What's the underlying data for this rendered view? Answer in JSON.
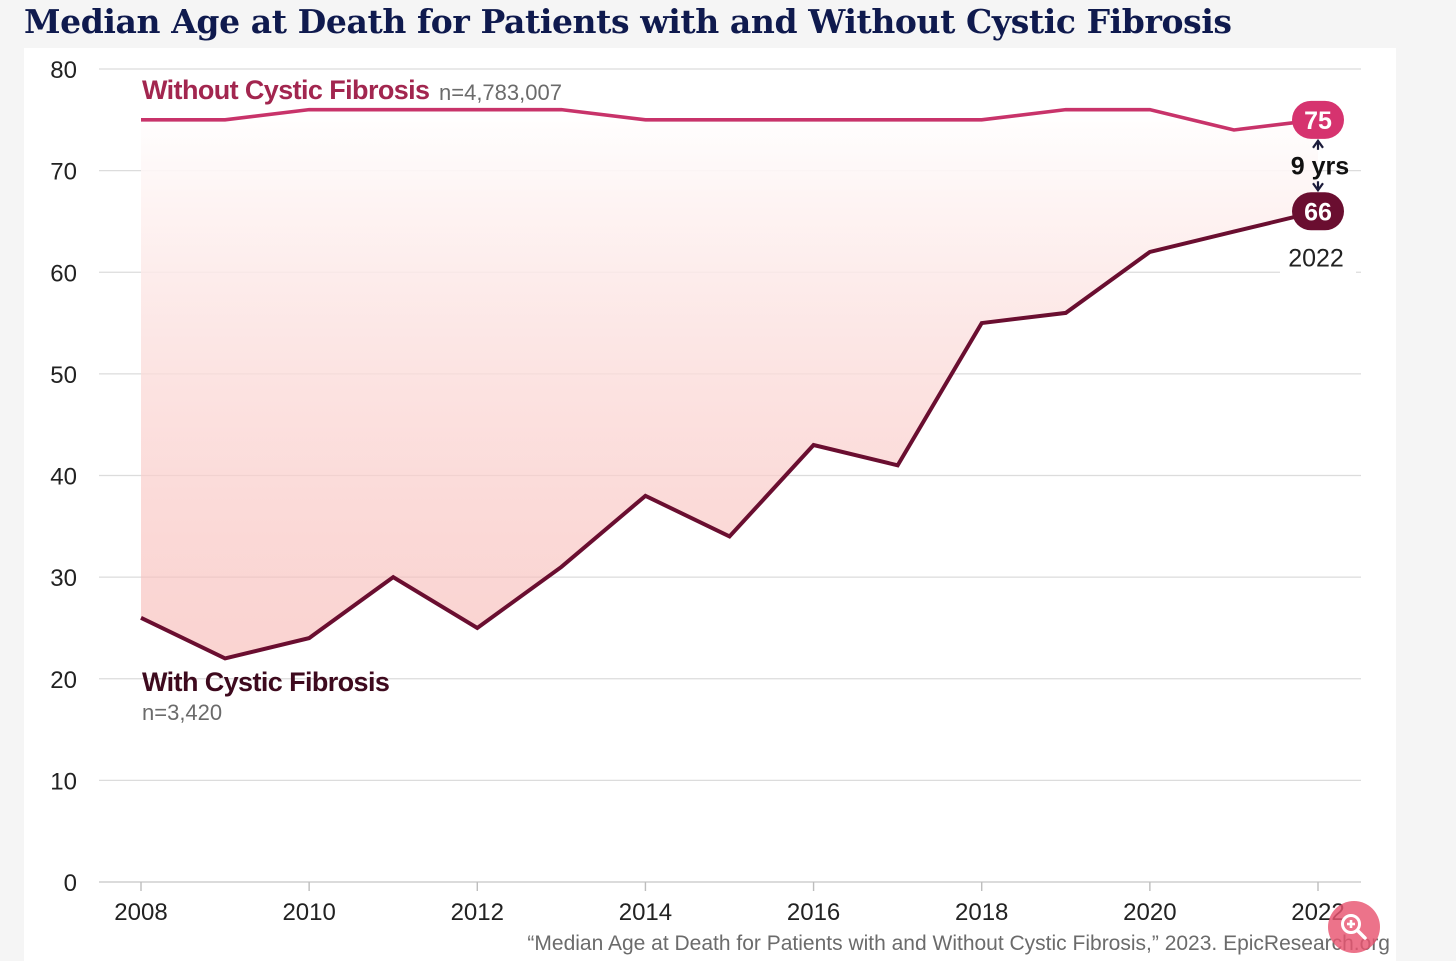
{
  "title": "Median Age at Death for Patients with and Without Cystic Fibrosis",
  "source": "“Median Age at Death for Patients with and Without Cystic Fibrosis,” 2023. EpicResearch.org",
  "zoom_button_icon": "zoom-in-icon",
  "chart_data": {
    "type": "line",
    "title": "Median Age at Death for Patients with and Without Cystic Fibrosis",
    "x": [
      2008,
      2009,
      2010,
      2011,
      2012,
      2013,
      2014,
      2015,
      2016,
      2017,
      2018,
      2019,
      2020,
      2021,
      2022
    ],
    "x_ticks": [
      "2008",
      "2010",
      "2012",
      "2014",
      "2016",
      "2018",
      "2020",
      "2022"
    ],
    "y_ticks": [
      "0",
      "10",
      "20",
      "30",
      "40",
      "50",
      "60",
      "70",
      "80"
    ],
    "ylim": [
      0,
      80
    ],
    "xlim": [
      2008,
      2022
    ],
    "grid": "horizontal",
    "shaded_gap": true,
    "series": [
      {
        "name": "Without Cystic Fibrosis",
        "n_label": "n=4,783,007",
        "color": "#c8336a",
        "values": [
          75,
          75,
          76,
          76,
          76,
          76,
          75,
          75,
          75,
          75,
          75,
          76,
          76,
          74,
          75
        ],
        "end_label": "75"
      },
      {
        "name": "With Cystic Fibrosis",
        "n_label": "n=3,420",
        "color": "#6a0e30",
        "values": [
          26,
          22,
          24,
          30,
          25,
          31,
          38,
          34,
          43,
          41,
          55,
          56,
          62,
          64,
          66
        ],
        "end_label": "66"
      }
    ],
    "annotations": {
      "gap_label": "9 yrs",
      "end_year_label": "2022"
    }
  }
}
